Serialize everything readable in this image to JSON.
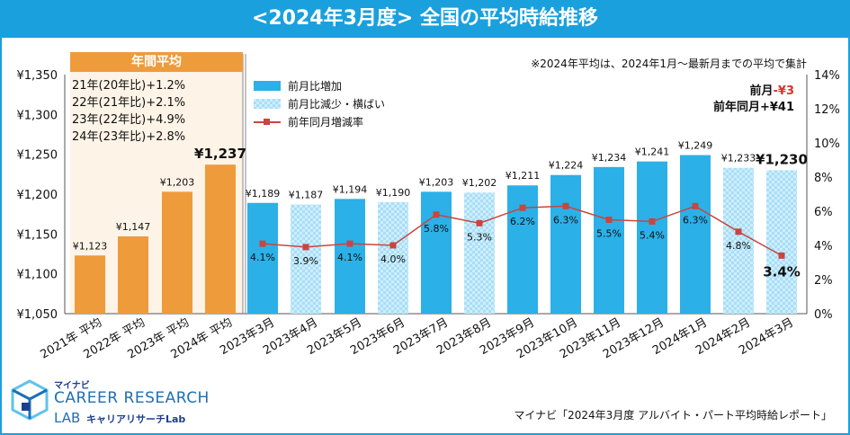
{
  "title": "<2024年3月度>  全国の平均時給推移",
  "annual_label": "年間平均",
  "annual_notes": [
    "21年(20年比)+1.2%",
    "22年(21年比)+2.1%",
    "23年(22年比)+4.9%",
    "24年(23年比)+2.8%"
  ],
  "top_note": "※2024年平均は、2024年1月～最新月までの平均で集計",
  "mom_label": "前月",
  "mom_value": "-¥3",
  "yoy_text": "前年同月+¥41",
  "legend": {
    "increase": "前月比増加",
    "decrease": "前月比減少・横ばい",
    "line": "前年同月増減率"
  },
  "logo": {
    "small": "マイナビ",
    "main": "CAREER RESEARCH",
    "lab": "LAB",
    "kana": "キャリアリサーチLab"
  },
  "source": "マイナビ「2024年3月度 アルバイト・パート平均時給レポート」",
  "colors": {
    "header": "#1aa0dc",
    "annual": "#ee9b3c",
    "increase": "#2bb0e8",
    "decrease": "#cdeefc",
    "line": "#c8463f"
  },
  "chart_data": {
    "type": "bar",
    "categories": [
      "2021年 平均",
      "2022年 平均",
      "2023年 平均",
      "2024年 平均",
      "2023年3月",
      "2023年4月",
      "2023年5月",
      "2023年6月",
      "2023年7月",
      "2023年8月",
      "2023年9月",
      "2023年10月",
      "2023年11月",
      "2023年12月",
      "2024年1月",
      "2024年2月",
      "2024年3月"
    ],
    "values": [
      1123,
      1147,
      1203,
      1237,
      1189,
      1187,
      1194,
      1190,
      1203,
      1202,
      1211,
      1224,
      1234,
      1241,
      1249,
      1233,
      1230
    ],
    "value_labels": [
      "¥1,123",
      "¥1,147",
      "¥1,203",
      "¥1,237",
      "¥1,189",
      "¥1,187",
      "¥1,194",
      "¥1,190",
      "¥1,203",
      "¥1,202",
      "¥1,211",
      "¥1,224",
      "¥1,234",
      "¥1,241",
      "¥1,249",
      "¥1,233",
      "¥1,230"
    ],
    "bar_kind": [
      "annual",
      "annual",
      "annual",
      "annual",
      "increase",
      "decrease",
      "increase",
      "decrease",
      "increase",
      "decrease",
      "increase",
      "increase",
      "increase",
      "increase",
      "increase",
      "decrease",
      "decrease"
    ],
    "yoy_rates": [
      null,
      null,
      null,
      null,
      4.1,
      3.9,
      4.1,
      4.0,
      5.8,
      5.3,
      6.2,
      6.3,
      5.5,
      5.4,
      6.3,
      4.8,
      3.4
    ],
    "yoy_labels": [
      "",
      "",
      "",
      "",
      "4.1%",
      "3.9%",
      "4.1%",
      "4.0%",
      "5.8%",
      "5.3%",
      "6.2%",
      "6.3%",
      "5.5%",
      "5.4%",
      "6.3%",
      "4.8%",
      "3.4%"
    ],
    "ylim": [
      1050,
      1350
    ],
    "yticks": [
      1050,
      1100,
      1150,
      1200,
      1250,
      1300,
      1350
    ],
    "ytick_labels": [
      "¥1,050",
      "¥1,100",
      "¥1,150",
      "¥1,200",
      "¥1,250",
      "¥1,300",
      "¥1,350"
    ],
    "y2lim": [
      0,
      14
    ],
    "y2ticks": [
      0,
      2,
      4,
      6,
      8,
      10,
      12,
      14
    ],
    "y2tick_labels": [
      "0%",
      "2%",
      "4%",
      "6%",
      "8%",
      "10%",
      "12%",
      "14%"
    ]
  }
}
